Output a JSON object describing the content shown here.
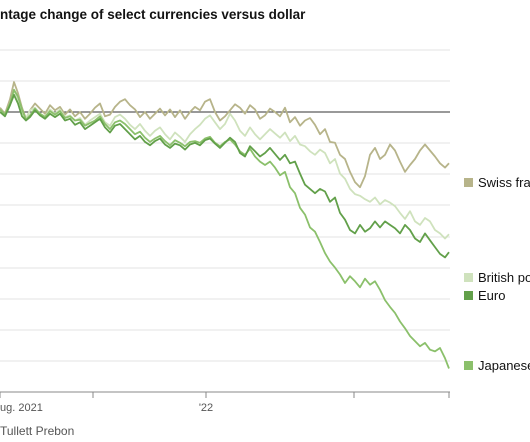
{
  "chart_data": {
    "type": "line",
    "title": "ntage change of select currencies versus dollar",
    "source": "Tullett Prebon",
    "x_tick_labels": [
      "ug. 2021",
      "'22"
    ],
    "grid": true,
    "series": [
      {
        "name": "Swiss fra",
        "color": "#b7b48a",
        "x": [
          0,
          5,
          10,
          14,
          18,
          22,
          26,
          30,
          35,
          40,
          45,
          50,
          55,
          60,
          65,
          70,
          75,
          80,
          85,
          90,
          95,
          100,
          105,
          110,
          115,
          120,
          125,
          130,
          135,
          140,
          145,
          150,
          155,
          160,
          165,
          170,
          175,
          180,
          185,
          190,
          195,
          200,
          205,
          210,
          215,
          220,
          225,
          230,
          235,
          240,
          245,
          250,
          255,
          260,
          265,
          270,
          275,
          280,
          285,
          290,
          295,
          300,
          305,
          310,
          315,
          320,
          325,
          330,
          335,
          340,
          345,
          350,
          355,
          360,
          365,
          370,
          375,
          380,
          385,
          390,
          395,
          400,
          405,
          410,
          415,
          420,
          425,
          430,
          435,
          440,
          445,
          449
        ],
        "y": [
          0.5,
          -0.2,
          1.5,
          3.5,
          2.2,
          0.5,
          -0.8,
          0.2,
          1.0,
          0.4,
          -0.2,
          0.8,
          0.2,
          0.6,
          -0.3,
          0.3,
          -0.5,
          0.0,
          -0.8,
          -0.2,
          0.5,
          1.0,
          -0.5,
          -0.3,
          0.6,
          1.2,
          1.5,
          0.8,
          0.3,
          -0.6,
          0.0,
          -0.8,
          -0.2,
          0.4,
          -0.4,
          0.3,
          -0.6,
          0.2,
          -0.8,
          0.0,
          0.6,
          0.2,
          1.2,
          1.5,
          0.0,
          -1.0,
          -0.5,
          0.2,
          0.9,
          0.5,
          -0.2,
          0.8,
          0.3,
          -0.8,
          -0.4,
          0.4,
          0.0,
          -0.5,
          0.5,
          -1.2,
          -0.6,
          -1.6,
          -1.0,
          -0.7,
          -1.5,
          -2.6,
          -2.0,
          -3.5,
          -3.6,
          -5.0,
          -5.5,
          -7.0,
          -8.2,
          -8.8,
          -7.5,
          -5.0,
          -4.2,
          -5.5,
          -5.0,
          -3.8,
          -4.5,
          -5.8,
          -7.0,
          -6.2,
          -5.5,
          -4.5,
          -3.8,
          -4.5,
          -5.2,
          -6.0,
          -6.5,
          -6.0
        ]
      },
      {
        "name": "British po",
        "color": "#cfe2bd",
        "x": [
          0,
          5,
          10,
          14,
          18,
          22,
          26,
          30,
          35,
          40,
          45,
          50,
          55,
          60,
          65,
          70,
          75,
          80,
          85,
          90,
          95,
          100,
          105,
          110,
          115,
          120,
          125,
          130,
          135,
          140,
          145,
          150,
          155,
          160,
          165,
          170,
          175,
          180,
          185,
          190,
          195,
          200,
          205,
          210,
          215,
          220,
          225,
          230,
          235,
          240,
          245,
          250,
          255,
          260,
          265,
          270,
          275,
          280,
          285,
          290,
          295,
          300,
          305,
          310,
          315,
          320,
          325,
          330,
          335,
          340,
          345,
          350,
          355,
          360,
          365,
          370,
          375,
          380,
          385,
          390,
          395,
          400,
          405,
          410,
          415,
          420,
          425,
          430,
          435,
          440,
          445,
          449
        ],
        "y": [
          0.2,
          -0.4,
          1.0,
          2.5,
          1.5,
          0.0,
          -0.8,
          0.2,
          0.5,
          -0.2,
          -0.5,
          0.3,
          -0.2,
          0.3,
          -0.6,
          -0.4,
          -1.0,
          -0.7,
          -1.5,
          -1.0,
          -0.6,
          -0.2,
          -1.2,
          -1.6,
          -0.6,
          -0.3,
          -0.8,
          -1.5,
          -2.0,
          -1.4,
          -2.2,
          -2.8,
          -2.2,
          -1.8,
          -2.6,
          -3.2,
          -2.4,
          -2.9,
          -3.5,
          -2.6,
          -2.0,
          -1.5,
          -0.8,
          -0.4,
          -1.2,
          -2.0,
          -1.4,
          -0.2,
          -1.0,
          -2.2,
          -2.8,
          -1.8,
          -2.6,
          -3.2,
          -2.6,
          -2.0,
          -2.5,
          -3.0,
          -2.4,
          -3.4,
          -2.8,
          -3.8,
          -4.0,
          -4.6,
          -5.0,
          -4.4,
          -4.8,
          -6.0,
          -5.5,
          -7.2,
          -7.8,
          -9.0,
          -9.6,
          -9.8,
          -10.2,
          -10.5,
          -10.0,
          -10.8,
          -10.3,
          -10.6,
          -11.0,
          -11.8,
          -12.5,
          -11.6,
          -12.8,
          -13.2,
          -12.4,
          -12.8,
          -13.8,
          -14.2,
          -14.8,
          -14.3
        ]
      },
      {
        "name": "Euro",
        "color": "#62a04a",
        "x": [
          0,
          5,
          10,
          14,
          18,
          22,
          26,
          30,
          35,
          40,
          45,
          50,
          55,
          60,
          65,
          70,
          75,
          80,
          85,
          90,
          95,
          100,
          105,
          110,
          115,
          120,
          125,
          130,
          135,
          140,
          145,
          150,
          155,
          160,
          165,
          170,
          175,
          180,
          185,
          190,
          195,
          200,
          205,
          210,
          215,
          220,
          225,
          230,
          235,
          240,
          245,
          250,
          255,
          260,
          265,
          270,
          275,
          280,
          285,
          290,
          295,
          300,
          305,
          310,
          315,
          320,
          325,
          330,
          335,
          340,
          345,
          350,
          355,
          360,
          365,
          370,
          375,
          380,
          385,
          390,
          395,
          400,
          405,
          410,
          415,
          420,
          425,
          430,
          435,
          440,
          445,
          449
        ],
        "y": [
          0.0,
          -0.5,
          0.8,
          2.0,
          1.0,
          -0.5,
          -1.0,
          -0.6,
          0.2,
          -0.4,
          -0.8,
          -0.2,
          -0.6,
          -0.2,
          -1.0,
          -0.8,
          -1.5,
          -1.2,
          -2.0,
          -1.6,
          -1.2,
          -0.8,
          -1.8,
          -2.4,
          -1.6,
          -1.4,
          -2.0,
          -2.6,
          -3.2,
          -2.8,
          -3.5,
          -3.9,
          -3.4,
          -3.1,
          -3.8,
          -4.2,
          -3.7,
          -3.9,
          -4.4,
          -3.8,
          -3.6,
          -3.9,
          -3.3,
          -3.1,
          -3.7,
          -4.2,
          -3.6,
          -3.0,
          -3.5,
          -4.8,
          -5.2,
          -4.0,
          -4.6,
          -5.2,
          -4.8,
          -4.2,
          -4.9,
          -5.6,
          -5.0,
          -6.0,
          -5.8,
          -7.2,
          -8.5,
          -9.0,
          -9.5,
          -9.0,
          -9.3,
          -10.5,
          -10.0,
          -11.8,
          -12.6,
          -13.8,
          -14.2,
          -13.2,
          -14.0,
          -13.6,
          -12.8,
          -13.5,
          -12.8,
          -13.2,
          -13.6,
          -14.2,
          -13.2,
          -13.8,
          -14.8,
          -15.2,
          -14.2,
          -15.0,
          -15.8,
          -16.6,
          -17.0,
          -16.4
        ]
      },
      {
        "name": "Japanese",
        "color": "#8bc06b",
        "x": [
          0,
          5,
          10,
          14,
          18,
          22,
          26,
          30,
          35,
          40,
          45,
          50,
          55,
          60,
          65,
          70,
          75,
          80,
          85,
          90,
          95,
          100,
          105,
          110,
          115,
          120,
          125,
          130,
          135,
          140,
          145,
          150,
          155,
          160,
          165,
          170,
          175,
          180,
          185,
          190,
          195,
          200,
          205,
          210,
          215,
          220,
          225,
          230,
          235,
          240,
          245,
          250,
          255,
          260,
          265,
          270,
          275,
          280,
          285,
          290,
          295,
          300,
          305,
          310,
          315,
          320,
          325,
          330,
          335,
          340,
          345,
          350,
          355,
          360,
          365,
          370,
          375,
          380,
          385,
          390,
          395,
          400,
          405,
          410,
          415,
          420,
          425,
          430,
          435,
          440,
          445,
          449
        ],
        "y": [
          0.3,
          -0.3,
          1.0,
          2.6,
          1.8,
          0.3,
          -0.9,
          -0.4,
          0.4,
          -0.2,
          -0.6,
          0.1,
          -0.3,
          0.1,
          -0.7,
          -0.5,
          -1.0,
          -0.9,
          -1.6,
          -1.3,
          -1.0,
          -0.5,
          -1.4,
          -2.0,
          -1.2,
          -1.0,
          -1.4,
          -2.0,
          -2.6,
          -2.3,
          -3.0,
          -3.5,
          -3.1,
          -2.8,
          -3.4,
          -3.9,
          -3.3,
          -3.6,
          -4.0,
          -3.5,
          -3.4,
          -3.6,
          -3.1,
          -2.9,
          -3.6,
          -4.0,
          -3.5,
          -3.2,
          -3.8,
          -4.6,
          -5.0,
          -4.3,
          -5.2,
          -5.8,
          -6.2,
          -5.8,
          -6.5,
          -7.4,
          -7.0,
          -8.8,
          -9.5,
          -11.2,
          -12.0,
          -13.5,
          -14.0,
          -15.2,
          -16.5,
          -17.5,
          -18.2,
          -19.0,
          -20.0,
          -19.2,
          -19.8,
          -20.5,
          -19.5,
          -20.2,
          -19.8,
          -20.8,
          -22.0,
          -22.8,
          -23.5,
          -24.5,
          -25.3,
          -26.2,
          -26.8,
          -27.4,
          -27.0,
          -27.8,
          -28.0,
          -27.6,
          -28.8,
          -30.0
        ]
      }
    ]
  }
}
